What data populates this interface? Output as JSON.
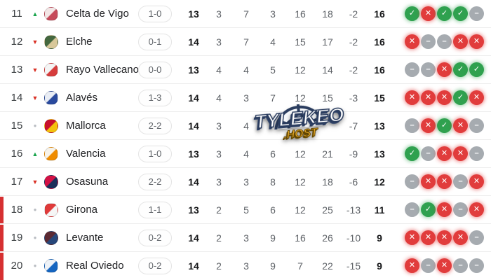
{
  "table": {
    "rows": [
      {
        "pos": "11",
        "trend": "up",
        "team": "Celta de Vigo",
        "crest": [
          "#f3e6e6",
          "#c64a5a"
        ],
        "score": "1-0",
        "stats": [
          "13",
          "3",
          "7",
          "3",
          "16",
          "18",
          "-2",
          "16"
        ],
        "form": [
          "W",
          "L",
          "W",
          "W",
          "D"
        ],
        "relegation": false
      },
      {
        "pos": "12",
        "trend": "down",
        "team": "Elche",
        "crest": [
          "#44683f",
          "#d8c89a"
        ],
        "score": "0-1",
        "stats": [
          "14",
          "3",
          "7",
          "4",
          "15",
          "17",
          "-2",
          "16"
        ],
        "form": [
          "L",
          "D",
          "D",
          "L",
          "L"
        ],
        "relegation": false
      },
      {
        "pos": "13",
        "trend": "down",
        "team": "Rayo Vallecano",
        "crest": [
          "#f5f5f5",
          "#d63c3c"
        ],
        "score": "0-0",
        "stats": [
          "13",
          "4",
          "4",
          "5",
          "12",
          "14",
          "-2",
          "16"
        ],
        "form": [
          "D",
          "D",
          "L",
          "W",
          "W"
        ],
        "relegation": false
      },
      {
        "pos": "14",
        "trend": "down",
        "team": "Alavés",
        "crest": [
          "#e9edf5",
          "#2a4a9e"
        ],
        "score": "1-3",
        "stats": [
          "14",
          "4",
          "3",
          "7",
          "12",
          "15",
          "-3",
          "15"
        ],
        "form": [
          "L",
          "L",
          "L",
          "W",
          "L"
        ],
        "relegation": false
      },
      {
        "pos": "15",
        "trend": "same",
        "team": "Mallorca",
        "crest": [
          "#c8102e",
          "#f4c20d"
        ],
        "score": "2-2",
        "stats": [
          "14",
          "3",
          "4",
          "",
          "",
          "",
          "-7",
          "13"
        ],
        "form": [
          "D",
          "L",
          "W",
          "L",
          "D"
        ],
        "relegation": false
      },
      {
        "pos": "16",
        "trend": "up",
        "team": "Valencia",
        "crest": [
          "#f7f3ea",
          "#ef8c00"
        ],
        "score": "1-0",
        "stats": [
          "13",
          "3",
          "4",
          "6",
          "12",
          "21",
          "-9",
          "13"
        ],
        "form": [
          "W",
          "D",
          "L",
          "L",
          "D"
        ],
        "relegation": false
      },
      {
        "pos": "17",
        "trend": "down",
        "team": "Osasuna",
        "crest": [
          "#d31145",
          "#1a2e5a"
        ],
        "score": "2-2",
        "stats": [
          "14",
          "3",
          "3",
          "8",
          "12",
          "18",
          "-6",
          "12"
        ],
        "form": [
          "D",
          "L",
          "L",
          "D",
          "L"
        ],
        "relegation": false
      },
      {
        "pos": "18",
        "trend": "same",
        "team": "Girona",
        "crest": [
          "#e03a3a",
          "#f6f6f6"
        ],
        "score": "1-1",
        "stats": [
          "13",
          "2",
          "5",
          "6",
          "12",
          "25",
          "-13",
          "11"
        ],
        "form": [
          "D",
          "W",
          "L",
          "D",
          "L"
        ],
        "relegation": true
      },
      {
        "pos": "19",
        "trend": "same",
        "team": "Levante",
        "crest": [
          "#5c2a33",
          "#27477a"
        ],
        "score": "0-2",
        "stats": [
          "14",
          "2",
          "3",
          "9",
          "16",
          "26",
          "-10",
          "9"
        ],
        "form": [
          "L",
          "L",
          "L",
          "L",
          "D"
        ],
        "relegation": true
      },
      {
        "pos": "20",
        "trend": "same",
        "team": "Real Oviedo",
        "crest": [
          "#eef2f7",
          "#1565c0"
        ],
        "score": "0-2",
        "stats": [
          "14",
          "2",
          "3",
          "9",
          "7",
          "22",
          "-15",
          "9"
        ],
        "form": [
          "L",
          "D",
          "L",
          "D",
          "D"
        ],
        "relegation": true
      }
    ]
  },
  "icons": {
    "form": {
      "W": "✓",
      "L": "✕",
      "D": "–"
    },
    "trend": {
      "up": "▲",
      "down": "▼",
      "same": "●"
    }
  },
  "colors": {
    "win": "#2fa14f",
    "loss": "#e13c3c",
    "draw": "#a6abb0",
    "relegation_bar": "#d63031",
    "trend_up": "#17a34a",
    "trend_down": "#d93025"
  },
  "watermark": {
    "title": "TYLEKEO",
    "subtitle": ".HOST",
    "title_color": "#ffffff",
    "subtitle_color": "#f3b229",
    "outline_color": "#2b3d5f"
  }
}
